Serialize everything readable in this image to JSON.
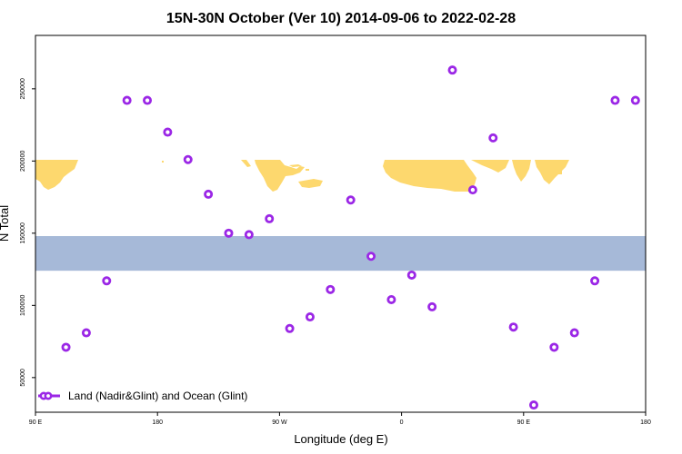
{
  "chart_data": {
    "type": "scatter",
    "title": "15N-30N October (Ver 10)   2014-09-06 to 2022-02-28",
    "xlabel": "Longitude (deg E)",
    "ylabel": "N Total",
    "xlim": [
      90,
      540
    ],
    "ylim": [
      26000,
      287000
    ],
    "x_ticks": [
      {
        "value": 90,
        "label": "90 E"
      },
      {
        "value": 180,
        "label": "180"
      },
      {
        "value": 270,
        "label": "90 W"
      },
      {
        "value": 360,
        "label": "0"
      },
      {
        "value": 450,
        "label": "90 E"
      },
      {
        "value": 540,
        "label": "180"
      }
    ],
    "y_ticks": [
      {
        "value": 50000,
        "label": "50000"
      },
      {
        "value": 100000,
        "label": "100000"
      },
      {
        "value": 150000,
        "label": "150000"
      },
      {
        "value": 200000,
        "label": "200000"
      },
      {
        "value": 250000,
        "label": "250000"
      }
    ],
    "grid": false,
    "map_band": {
      "y_min": 124000,
      "y_max": 148000,
      "ocean_color": "#a6b9d8",
      "land_color": "#fdd86e"
    },
    "legend": {
      "position": "bottom-left",
      "label": "Land (Nadir&Glint) and Ocean (Glint)"
    },
    "series": [
      {
        "name": "Land (Nadir&Glint) and Ocean (Glint)",
        "color": "#9b27e6",
        "x": [
          112.5,
          127.5,
          142.5,
          157.5,
          172.5,
          187.5,
          202.5,
          217.5,
          232.5,
          247.5,
          262.5,
          277.5,
          292.5,
          307.5,
          322.5,
          337.5,
          352.5,
          367.5,
          382.5,
          397.5,
          412.5,
          427.5,
          442.5,
          457.5,
          472.5,
          487.5,
          502.5,
          517.5,
          532.5
        ],
        "y": [
          71000,
          81000,
          117000,
          242000,
          242000,
          220000,
          201000,
          177000,
          150000,
          149000,
          160000,
          84000,
          92000,
          111000,
          173000,
          134000,
          104000,
          121000,
          99000,
          263000,
          180000,
          216000,
          85000,
          31000,
          71000,
          81000,
          117000,
          242000,
          242000
        ]
      }
    ]
  }
}
